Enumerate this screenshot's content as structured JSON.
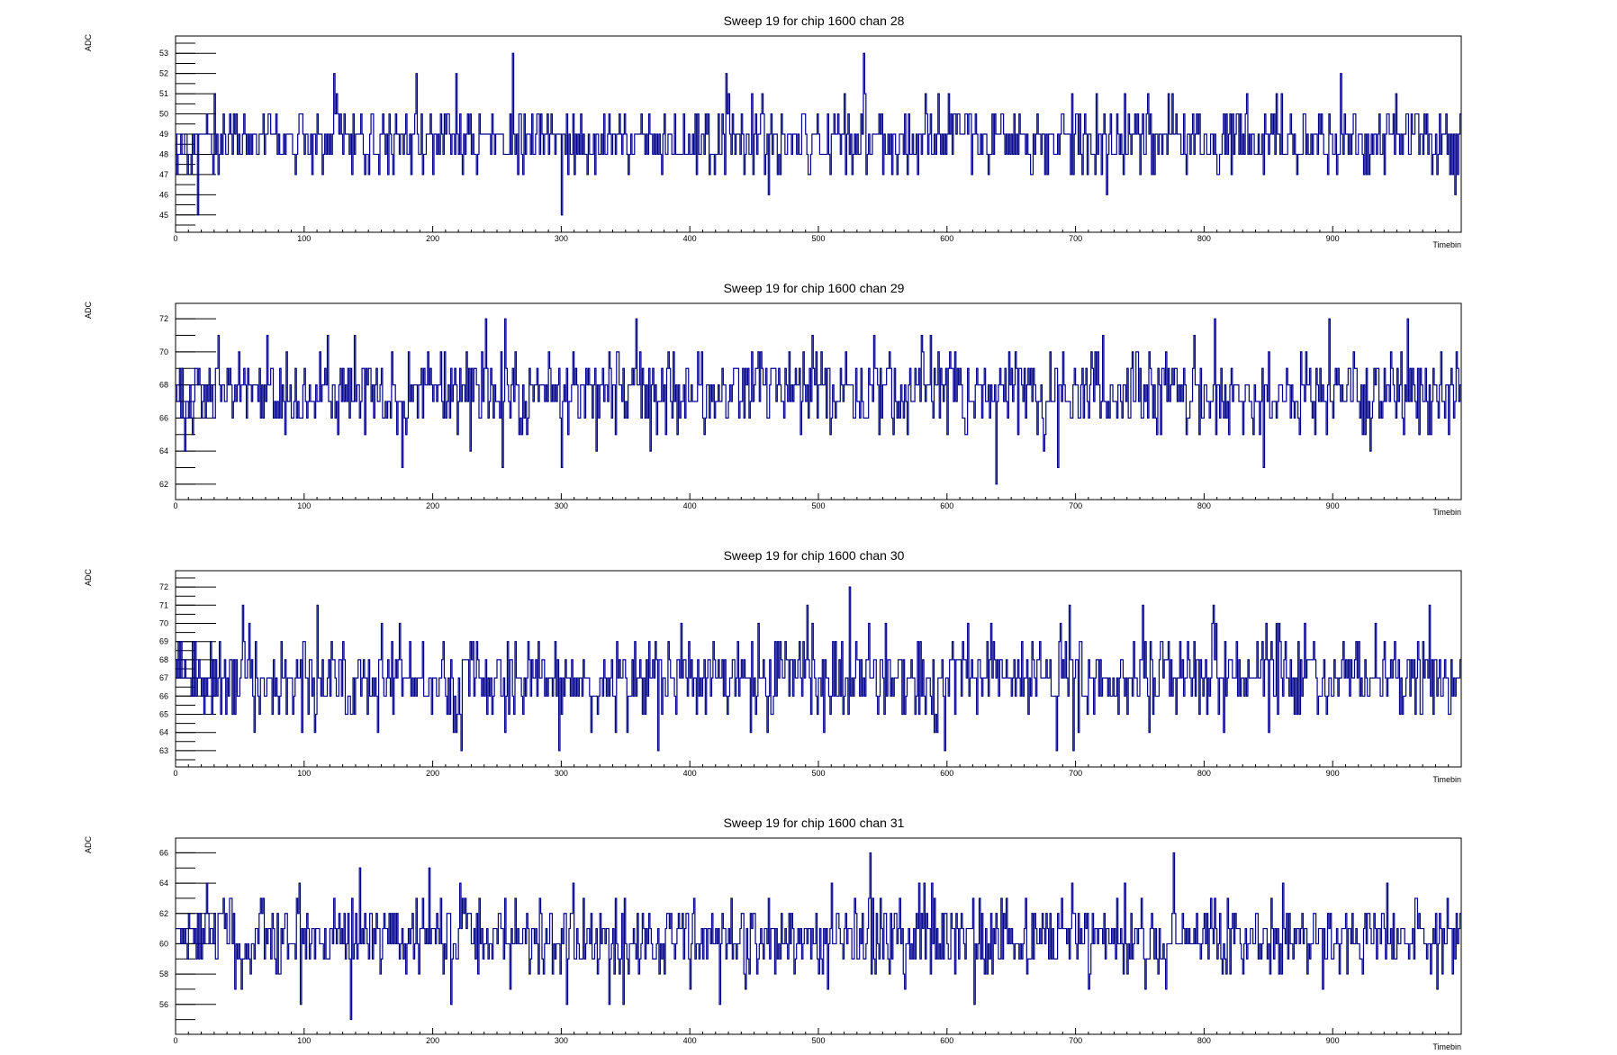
{
  "chart_data": [
    {
      "type": "line",
      "title": "Sweep 19 for chip 1600 chan 28",
      "xlabel": "Timebin",
      "ylabel": "ADC",
      "xlim": [
        0,
        1000
      ],
      "ylim": [
        44.5,
        53.5
      ],
      "x_ticks": [
        0,
        100,
        200,
        300,
        400,
        500,
        600,
        700,
        800,
        900
      ],
      "y_ticks": [
        45,
        46,
        47,
        48,
        49,
        50,
        51,
        52,
        53
      ],
      "baseline": 48.7,
      "spread": 0.9,
      "min": 45,
      "max": 53,
      "seed": 28,
      "spikes": [
        [
          17,
          45
        ],
        [
          262,
          53
        ],
        [
          300,
          45
        ],
        [
          535,
          53
        ],
        [
          187,
          52
        ],
        [
          123,
          52
        ],
        [
          218,
          52
        ],
        [
          906,
          52
        ]
      ],
      "grid": false,
      "legend": "none",
      "color": "#00008b"
    },
    {
      "type": "line",
      "title": "Sweep 19 for chip 1600 chan 29",
      "xlabel": "Timebin",
      "ylabel": "ADC",
      "xlim": [
        0,
        1000
      ],
      "ylim": [
        61.5,
        72.5
      ],
      "x_ticks": [
        0,
        100,
        200,
        300,
        400,
        500,
        600,
        700,
        800,
        900
      ],
      "y_ticks": [
        62,
        64,
        66,
        68,
        70,
        72
      ],
      "baseline": 67.6,
      "spread": 1.3,
      "min": 62,
      "max": 72,
      "seed": 29,
      "spikes": [
        [
          256,
          72
        ],
        [
          358,
          72
        ],
        [
          808,
          72
        ],
        [
          958,
          72
        ],
        [
          638,
          62
        ],
        [
          176,
          63
        ],
        [
          254,
          63
        ],
        [
          300,
          63
        ],
        [
          686,
          63
        ],
        [
          846,
          63
        ]
      ],
      "grid": false,
      "legend": "none",
      "color": "#00008b"
    },
    {
      "type": "line",
      "title": "Sweep 19 for chip 1600 chan 30",
      "xlabel": "Timebin",
      "ylabel": "ADC",
      "xlim": [
        0,
        1000
      ],
      "ylim": [
        62.5,
        72.5
      ],
      "x_ticks": [
        0,
        100,
        200,
        300,
        400,
        500,
        600,
        700,
        800,
        900
      ],
      "y_ticks": [
        63,
        64,
        65,
        66,
        67,
        68,
        69,
        70,
        71,
        72
      ],
      "baseline": 67.0,
      "spread": 1.2,
      "min": 63,
      "max": 72,
      "seed": 30,
      "spikes": [
        [
          524,
          72
        ],
        [
          110,
          71
        ],
        [
          491,
          71
        ],
        [
          695,
          71
        ],
        [
          807,
          71
        ],
        [
          298,
          63
        ],
        [
          375,
          63
        ],
        [
          598,
          63
        ],
        [
          61,
          64
        ],
        [
          256,
          64
        ],
        [
          460,
          64
        ]
      ],
      "grid": false,
      "legend": "none",
      "color": "#00008b"
    },
    {
      "type": "line",
      "title": "Sweep 19 for chip 1600 chan 31",
      "xlabel": "Timebin",
      "ylabel": "ADC",
      "xlim": [
        0,
        1000
      ],
      "ylim": [
        54.5,
        66.5
      ],
      "x_ticks": [
        0,
        100,
        200,
        300,
        400,
        500,
        600,
        700,
        800,
        900
      ],
      "y_ticks": [
        56,
        58,
        60,
        62,
        64,
        66
      ],
      "baseline": 60.4,
      "spread": 1.3,
      "min": 55,
      "max": 66,
      "seed": 31,
      "spikes": [
        [
          540,
          66
        ],
        [
          776,
          66
        ],
        [
          143,
          65
        ],
        [
          96,
          64
        ],
        [
          136,
          55
        ],
        [
          97,
          56
        ],
        [
          337,
          56
        ],
        [
          348,
          56
        ],
        [
          621,
          56
        ],
        [
          710,
          57
        ],
        [
          981,
          57
        ]
      ],
      "grid": false,
      "legend": "none",
      "color": "#00008b"
    }
  ]
}
